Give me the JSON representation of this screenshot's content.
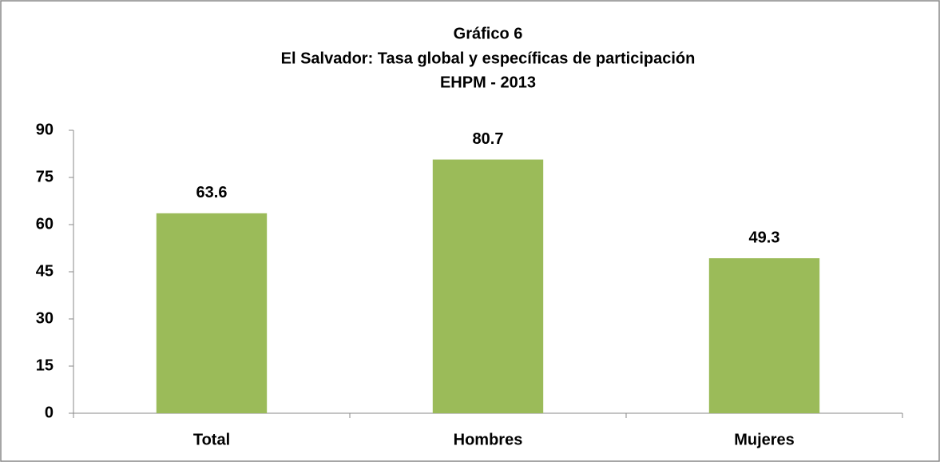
{
  "chart_data": {
    "type": "bar",
    "title": [
      "Gráfico 6",
      "El Salvador: Tasa global y específicas de participación",
      "EHPM - 2013"
    ],
    "categories": [
      "Total",
      "Hombres",
      "Mujeres"
    ],
    "values": [
      63.6,
      80.7,
      49.3
    ],
    "color": "#9bbb59",
    "ylim": [
      0,
      90
    ],
    "yticks": [
      0,
      15,
      30,
      45,
      60,
      75,
      90
    ],
    "grid": false
  }
}
